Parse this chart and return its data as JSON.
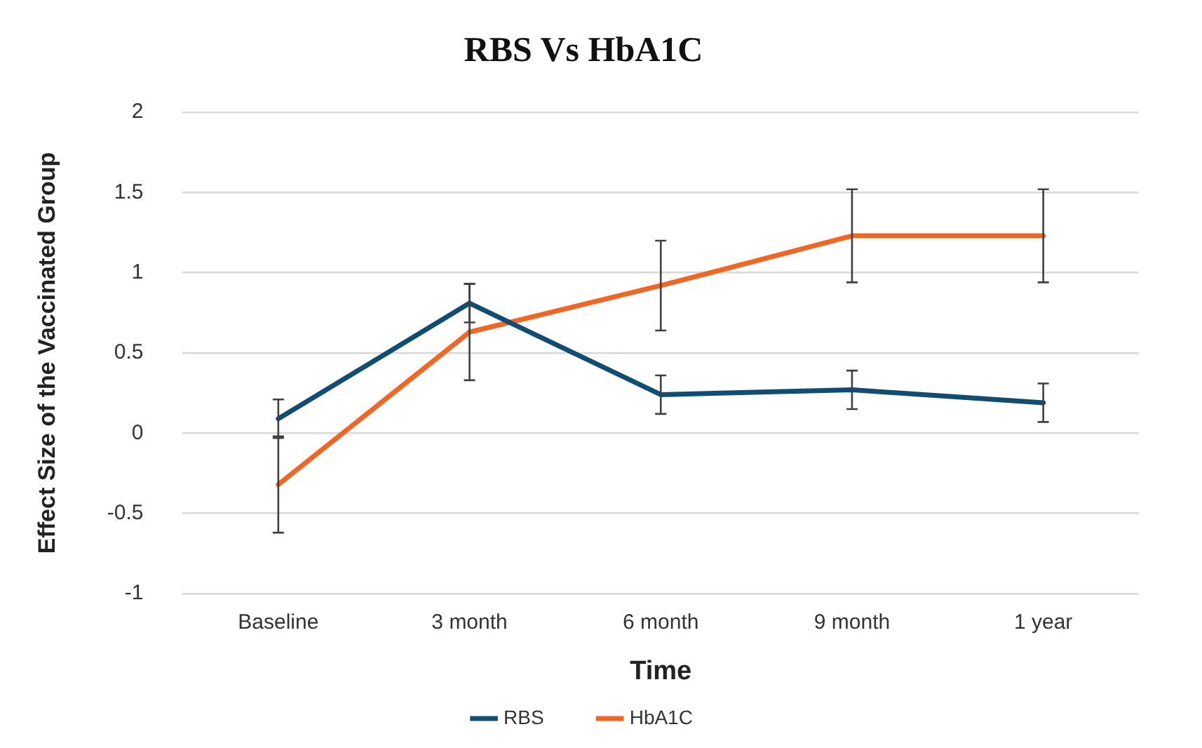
{
  "chart_data": {
    "type": "line",
    "title": "RBS Vs HbA1C",
    "xlabel": "Time",
    "ylabel": "Effect Size of the Vaccinated Group",
    "categories": [
      "Baseline",
      "3 month",
      "6 month",
      "9 month",
      "1 year"
    ],
    "series": [
      {
        "name": "RBS",
        "color": "#114d72",
        "values": [
          0.09,
          0.81,
          0.24,
          0.27,
          0.19
        ],
        "errors": [
          0.12,
          0.12,
          0.12,
          0.12,
          0.12
        ]
      },
      {
        "name": "HbA1C",
        "color": "#f26522",
        "values": [
          -0.32,
          0.63,
          0.92,
          1.23,
          1.23
        ],
        "errors": [
          0.3,
          0.3,
          0.28,
          0.29,
          0.29
        ]
      }
    ],
    "ylim": [
      -1,
      2
    ],
    "yticks": [
      -1,
      -0.5,
      0,
      0.5,
      1,
      1.5,
      2
    ],
    "grid": "y",
    "legend": "bottom",
    "marker": "none",
    "line_style": "solid"
  }
}
